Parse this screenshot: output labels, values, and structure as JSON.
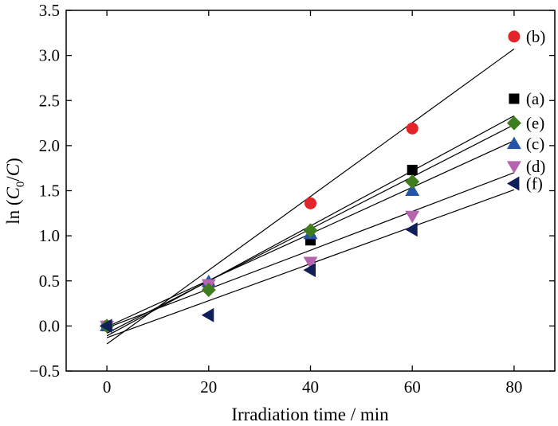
{
  "chart_data": {
    "type": "scatter",
    "xlabel": "Irradiation time / min",
    "ylabel": {
      "prefix": "ln (",
      "c0_main": "C",
      "c0_sub": "0",
      "rest": "/",
      "c_main": "C",
      "suffix": ")"
    },
    "xlim": [
      -8,
      88
    ],
    "ylim": [
      -0.5,
      3.5
    ],
    "x_ticks": [
      0,
      20,
      40,
      60,
      80
    ],
    "x_tick_labels": [
      "0",
      "20",
      "40",
      "60",
      "80"
    ],
    "y_ticks": [
      -0.5,
      0.0,
      0.5,
      1.0,
      1.5,
      2.0,
      2.5,
      3.0,
      3.5
    ],
    "y_tick_labels": [
      "−0.5",
      "0.0",
      "0.5",
      "1.0",
      "1.5",
      "2.0",
      "2.5",
      "3.0",
      "3.5"
    ],
    "grid": false,
    "series": [
      {
        "name": "(a)",
        "marker": "square",
        "color": "#000000",
        "x": [
          0,
          20,
          40,
          60,
          80
        ],
        "y": [
          0.0,
          0.46,
          0.95,
          1.73,
          2.52
        ],
        "fit": [
          -0.11,
          0.0305
        ]
      },
      {
        "name": "(b)",
        "marker": "circle",
        "color": "#e3242b",
        "x": [
          0,
          20,
          40,
          60,
          80
        ],
        "y": [
          0.0,
          0.45,
          1.36,
          2.19,
          3.21
        ],
        "fit": [
          -0.2,
          0.0409
        ]
      },
      {
        "name": "(c)",
        "marker": "triangle-up",
        "color": "#2453a8",
        "x": [
          0,
          20,
          40,
          60,
          80
        ],
        "y": [
          0.0,
          0.49,
          1.02,
          1.5,
          2.02
        ],
        "fit": [
          -0.01,
          0.0258
        ]
      },
      {
        "name": "(d)",
        "marker": "triangle-down",
        "color": "#b565b0",
        "x": [
          0,
          20,
          40,
          60,
          80
        ],
        "y": [
          0.0,
          0.46,
          0.71,
          1.22,
          1.77
        ],
        "fit": [
          -0.02,
          0.0215
        ]
      },
      {
        "name": "(e)",
        "marker": "diamond",
        "color": "#3f7d1e",
        "x": [
          0,
          20,
          40,
          60,
          80
        ],
        "y": [
          0.0,
          0.4,
          1.06,
          1.6,
          2.25
        ],
        "fit": [
          -0.08,
          0.0289
        ]
      },
      {
        "name": "(f)",
        "marker": "triangle-left",
        "color": "#101e5a",
        "x": [
          0,
          20,
          40,
          60,
          80
        ],
        "y": [
          0.0,
          0.12,
          0.62,
          1.07,
          1.58
        ],
        "fit": [
          -0.13,
          0.0205
        ]
      }
    ]
  }
}
